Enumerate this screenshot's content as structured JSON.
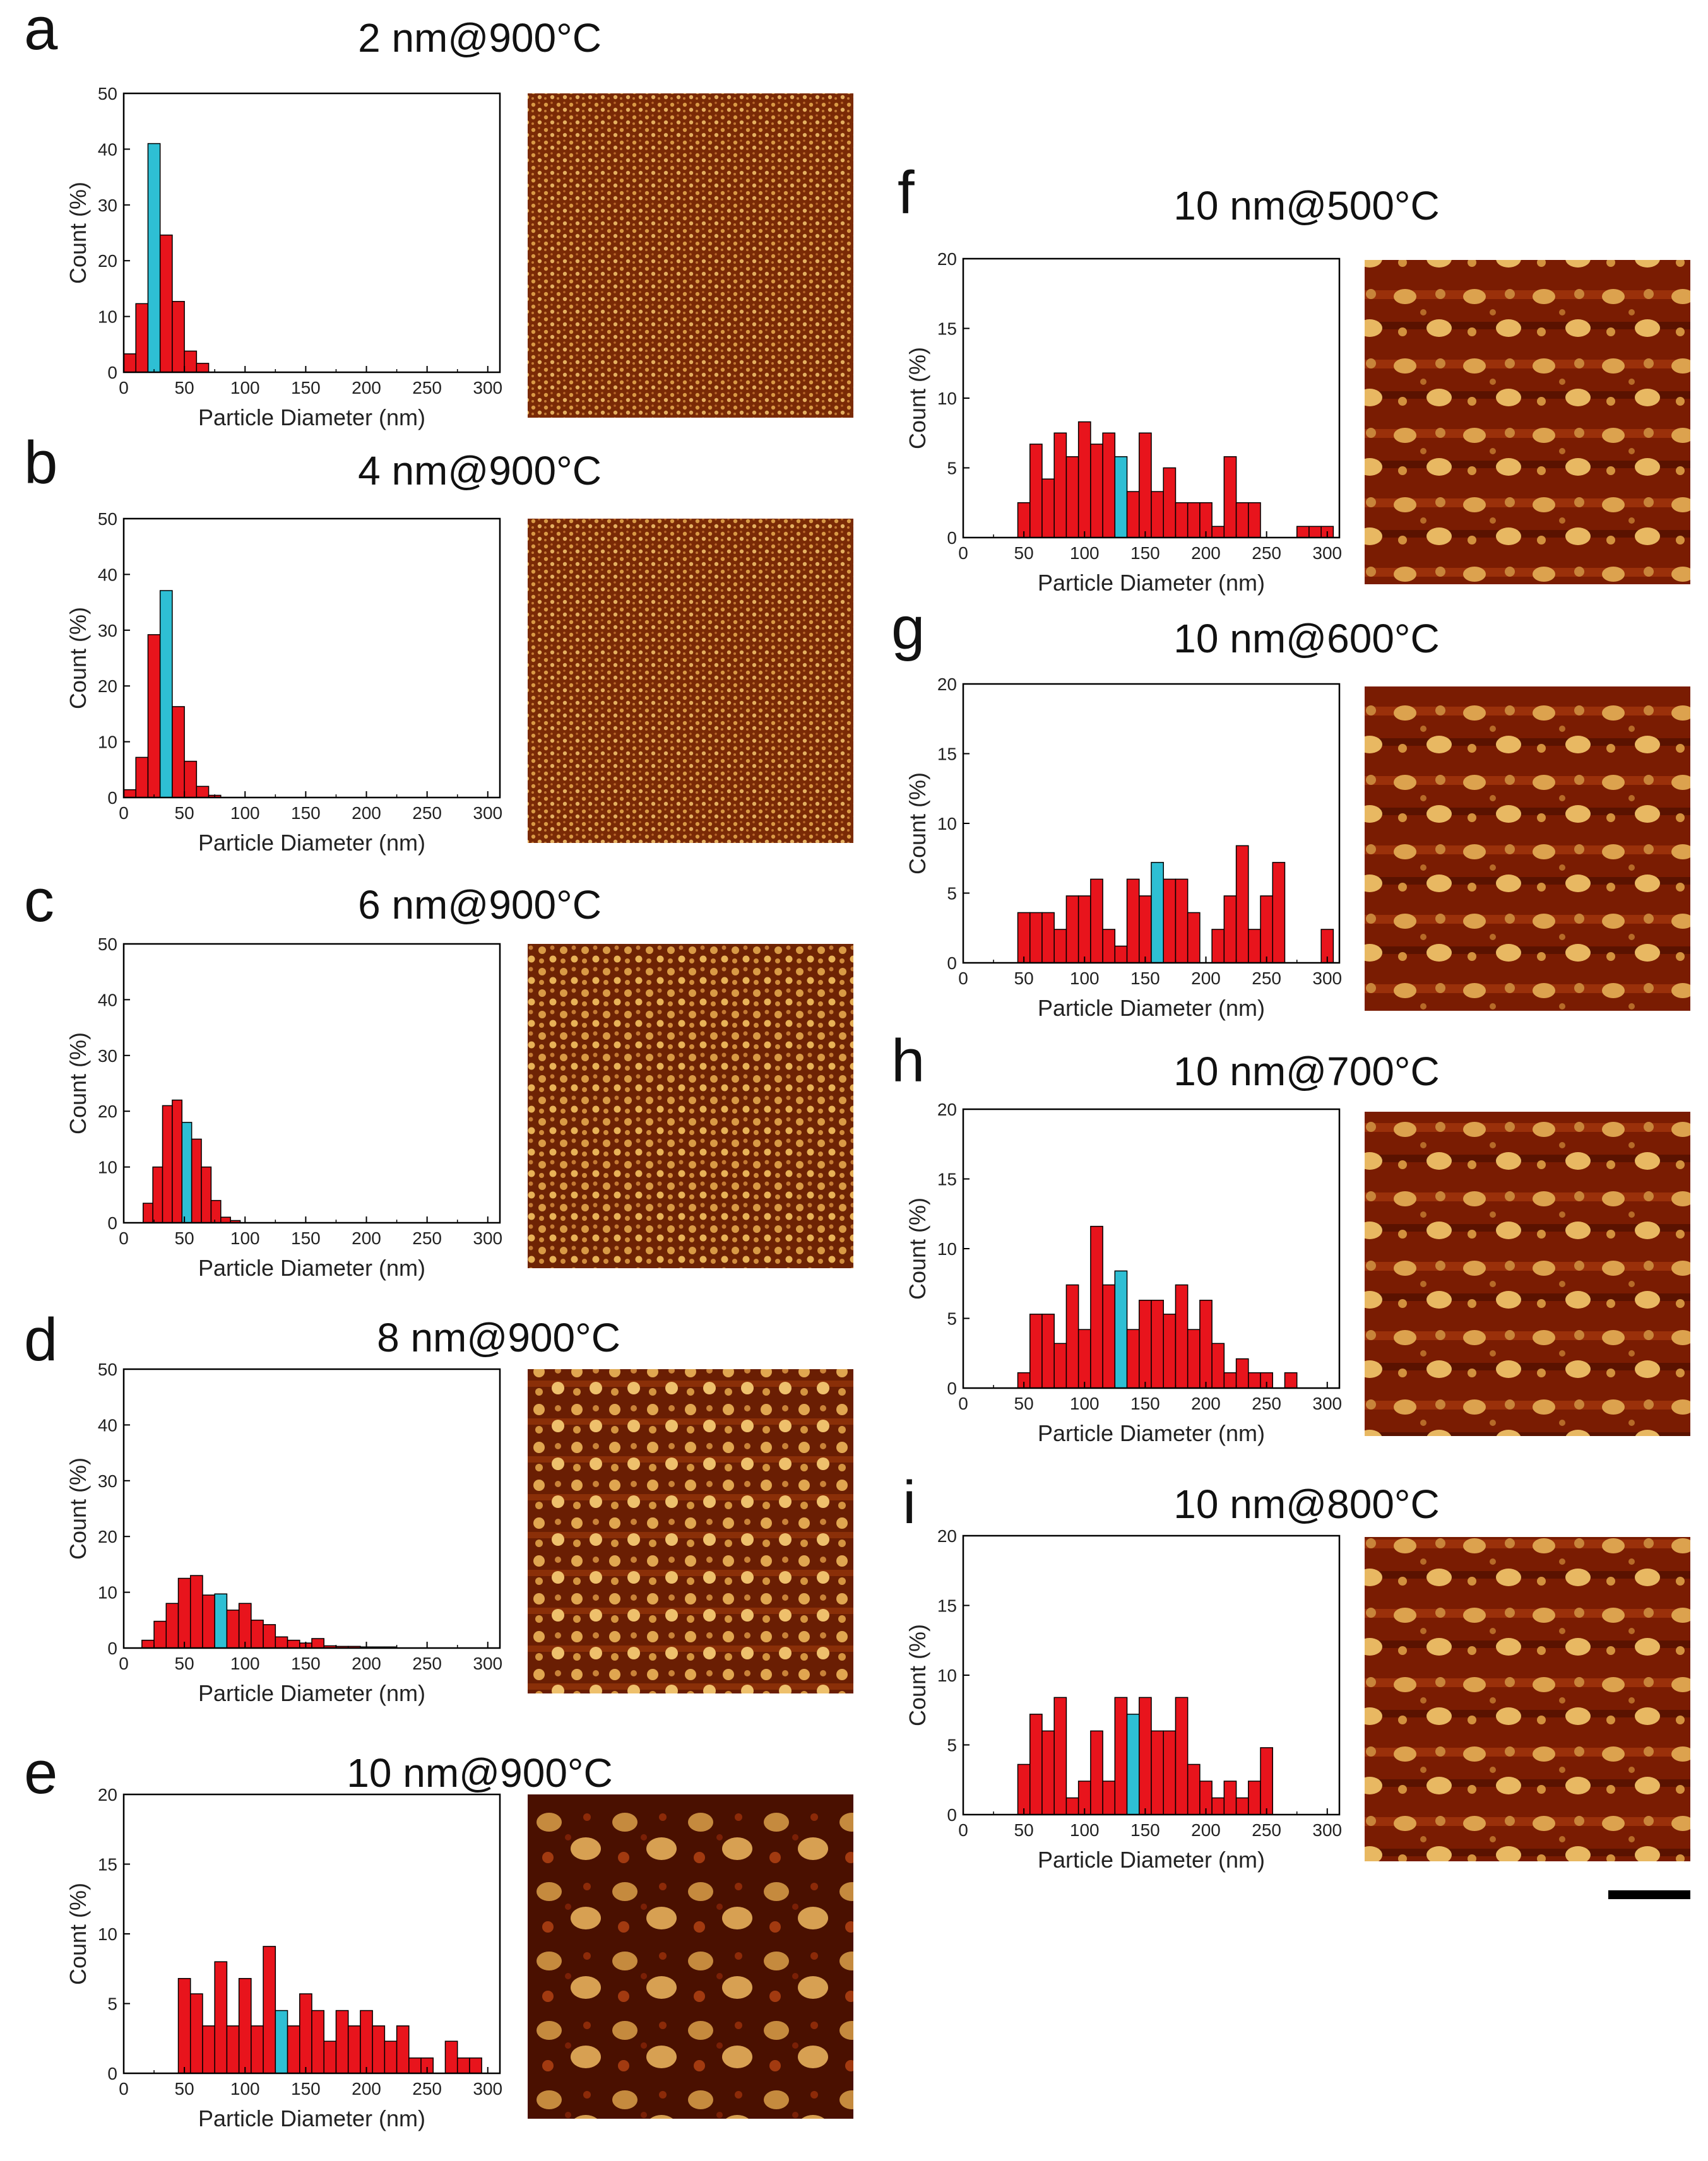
{
  "colors": {
    "bar": "#e8141c",
    "highlight": "#2ebfd4",
    "axis": "#000000",
    "afm_dark": "#5a1500",
    "afm_mid": "#a8400c",
    "afm_light": "#e8b257",
    "scale_bar": "#000000"
  },
  "chart_data": [
    {
      "panel": "a",
      "type": "bar",
      "title": "2 nm@900°C",
      "xlabel": "Particle Diameter (nm)",
      "ylabel": "Count (%)",
      "xlim": [
        0,
        310
      ],
      "ylim": [
        0,
        50
      ],
      "xticks": [
        0,
        50,
        100,
        150,
        200,
        250,
        300
      ],
      "yticks": [
        0,
        10,
        20,
        30,
        40,
        50
      ],
      "bin_width": 10,
      "bin_starts": [
        0,
        10,
        20,
        30,
        40,
        50,
        60
      ],
      "values": [
        3.3,
        12.3,
        41,
        24.6,
        12.7,
        3.8,
        1.6
      ],
      "highlight_index": 2
    },
    {
      "panel": "b",
      "type": "bar",
      "title": "4 nm@900°C",
      "xlabel": "Particle Diameter (nm)",
      "ylabel": "Count (%)",
      "xlim": [
        0,
        310
      ],
      "ylim": [
        0,
        50
      ],
      "xticks": [
        0,
        50,
        100,
        150,
        200,
        250,
        300
      ],
      "yticks": [
        0,
        10,
        20,
        30,
        40,
        50
      ],
      "bin_width": 10,
      "bin_starts": [
        0,
        10,
        20,
        30,
        40,
        50,
        60,
        70
      ],
      "values": [
        1.4,
        7.2,
        29.2,
        37.1,
        16.3,
        6.5,
        2,
        0.4
      ],
      "highlight_index": 3
    },
    {
      "panel": "c",
      "type": "bar",
      "title": "6 nm@900°C",
      "xlabel": "Particle Diameter (nm)",
      "ylabel": "Count (%)",
      "xlim": [
        0,
        310
      ],
      "ylim": [
        0,
        50
      ],
      "xticks": [
        0,
        50,
        100,
        150,
        200,
        250,
        300
      ],
      "yticks": [
        0,
        10,
        20,
        30,
        40,
        50
      ],
      "bin_width": 8,
      "bin_starts": [
        16,
        24,
        32,
        40,
        48,
        56,
        64,
        72,
        80,
        88
      ],
      "values": [
        3.5,
        10,
        21,
        22,
        18,
        15,
        10,
        4,
        1,
        0.4
      ],
      "highlight_index": 4
    },
    {
      "panel": "d",
      "type": "bar",
      "title": "8 nm@900°C",
      "xlabel": "Particle Diameter (nm)",
      "ylabel": "Count (%)",
      "xlim": [
        0,
        310
      ],
      "ylim": [
        0,
        50
      ],
      "xticks": [
        0,
        50,
        100,
        150,
        200,
        250,
        300
      ],
      "yticks": [
        0,
        10,
        20,
        30,
        40,
        50
      ],
      "bin_width": 10,
      "bin_starts": [
        15,
        25,
        35,
        45,
        55,
        65,
        75,
        85,
        95,
        105,
        115,
        125,
        135,
        145,
        155,
        165,
        175,
        185,
        195,
        205,
        215
      ],
      "values": [
        1.4,
        4.8,
        8,
        12.5,
        13,
        9.5,
        9.7,
        6.8,
        8,
        5,
        4.2,
        2,
        1.4,
        0.9,
        1.7,
        0.4,
        0.3,
        0.3,
        0.2,
        0.2,
        0.2
      ],
      "highlight_index": 6
    },
    {
      "panel": "e",
      "type": "bar",
      "title": "10 nm@900°C",
      "xlabel": "Particle Diameter (nm)",
      "ylabel": "Count (%)",
      "xlim": [
        0,
        310
      ],
      "ylim": [
        0,
        20
      ],
      "xticks": [
        0,
        50,
        100,
        150,
        200,
        250,
        300
      ],
      "yticks": [
        0,
        5,
        10,
        15,
        20
      ],
      "bin_width": 10,
      "bin_starts": [
        45,
        55,
        65,
        75,
        85,
        95,
        105,
        115,
        125,
        135,
        145,
        155,
        165,
        175,
        185,
        195,
        205,
        215,
        225,
        235,
        245,
        255,
        265,
        275,
        285
      ],
      "values": [
        6.8,
        5.7,
        3.4,
        8,
        3.4,
        6.8,
        3.4,
        9.1,
        4.5,
        3.4,
        5.7,
        4.5,
        2.3,
        4.5,
        3.4,
        4.5,
        3.4,
        2.3,
        3.4,
        1.1,
        1.1,
        0,
        2.3,
        1.1,
        1.1
      ],
      "highlight_index": 8
    },
    {
      "panel": "f",
      "type": "bar",
      "title": "10 nm@500°C",
      "xlabel": "Particle Diameter (nm)",
      "ylabel": "Count (%)",
      "xlim": [
        0,
        310
      ],
      "ylim": [
        0,
        20
      ],
      "xticks": [
        0,
        50,
        100,
        150,
        200,
        250,
        300
      ],
      "yticks": [
        0,
        5,
        10,
        15,
        20
      ],
      "bin_width": 10,
      "bin_starts": [
        45,
        55,
        65,
        75,
        85,
        95,
        105,
        115,
        125,
        135,
        145,
        155,
        165,
        175,
        185,
        195,
        205,
        215,
        225,
        235,
        245,
        255,
        265,
        275,
        285,
        295
      ],
      "values": [
        2.5,
        6.7,
        4.2,
        7.5,
        5.8,
        8.3,
        6.7,
        7.5,
        5.8,
        3.3,
        7.5,
        3.3,
        5,
        2.5,
        2.5,
        2.5,
        0.8,
        5.8,
        2.5,
        2.5,
        0,
        0,
        0,
        0.8,
        0.8,
        0.8
      ],
      "highlight_index": 8
    },
    {
      "panel": "g",
      "type": "bar",
      "title": "10 nm@600°C",
      "xlabel": "Particle Diameter (nm)",
      "ylabel": "Count (%)",
      "xlim": [
        0,
        310
      ],
      "ylim": [
        0,
        20
      ],
      "xticks": [
        0,
        50,
        100,
        150,
        200,
        250,
        300
      ],
      "yticks": [
        0,
        5,
        10,
        15,
        20
      ],
      "bin_width": 10,
      "bin_starts": [
        45,
        55,
        65,
        75,
        85,
        95,
        105,
        115,
        125,
        135,
        145,
        155,
        165,
        175,
        185,
        195,
        205,
        215,
        225,
        235,
        245,
        255,
        265,
        275,
        285,
        295
      ],
      "values": [
        3.6,
        3.6,
        3.6,
        2.4,
        4.8,
        4.8,
        6,
        2.4,
        1.2,
        6,
        4.8,
        7.2,
        6,
        6,
        3.6,
        0,
        2.4,
        4.8,
        8.4,
        2.4,
        4.8,
        7.2,
        0,
        0,
        0,
        2.4
      ],
      "highlight_index": 11
    },
    {
      "panel": "h",
      "type": "bar",
      "title": "10 nm@700°C",
      "xlabel": "Particle Diameter (nm)",
      "ylabel": "Count (%)",
      "xlim": [
        0,
        310
      ],
      "ylim": [
        0,
        20
      ],
      "xticks": [
        0,
        50,
        100,
        150,
        200,
        250,
        300
      ],
      "yticks": [
        0,
        5,
        10,
        15,
        20
      ],
      "bin_width": 10,
      "bin_starts": [
        45,
        55,
        65,
        75,
        85,
        95,
        105,
        115,
        125,
        135,
        145,
        155,
        165,
        175,
        185,
        195,
        205,
        215,
        225,
        235,
        245,
        255,
        265
      ],
      "values": [
        1.1,
        5.3,
        5.3,
        3.2,
        7.4,
        4.2,
        11.6,
        7.4,
        8.4,
        4.2,
        6.3,
        6.3,
        5.3,
        7.4,
        4.2,
        6.3,
        3.2,
        1.1,
        2.1,
        1.1,
        1.1,
        0,
        1.1
      ],
      "highlight_index": 8
    },
    {
      "panel": "i",
      "type": "bar",
      "title": "10 nm@800°C",
      "xlabel": "Particle Diameter (nm)",
      "ylabel": "Count (%)",
      "xlim": [
        0,
        310
      ],
      "ylim": [
        0,
        20
      ],
      "xticks": [
        0,
        50,
        100,
        150,
        200,
        250,
        300
      ],
      "yticks": [
        0,
        5,
        10,
        15,
        20
      ],
      "bin_width": 10,
      "bin_starts": [
        45,
        55,
        65,
        75,
        85,
        95,
        105,
        115,
        125,
        135,
        145,
        155,
        165,
        175,
        185,
        195,
        205,
        215,
        225,
        235,
        245
      ],
      "values": [
        3.6,
        7.2,
        6,
        8.4,
        1.2,
        2.4,
        6,
        2.4,
        8.4,
        7.2,
        8.4,
        6,
        6,
        8.4,
        3.6,
        2.4,
        1.2,
        2.4,
        1.2,
        2.4,
        4.8
      ],
      "highlight_index": 9
    }
  ],
  "afm_images": [
    {
      "panel": "a",
      "texture": "fine"
    },
    {
      "panel": "b",
      "texture": "fine"
    },
    {
      "panel": "c",
      "texture": "small"
    },
    {
      "panel": "d",
      "texture": "medium"
    },
    {
      "panel": "e",
      "texture": "sparse-large"
    },
    {
      "panel": "f",
      "texture": "large-streaked"
    },
    {
      "panel": "g",
      "texture": "large-streaked"
    },
    {
      "panel": "h",
      "texture": "large-streaked"
    },
    {
      "panel": "i",
      "texture": "large-streaked"
    }
  ]
}
